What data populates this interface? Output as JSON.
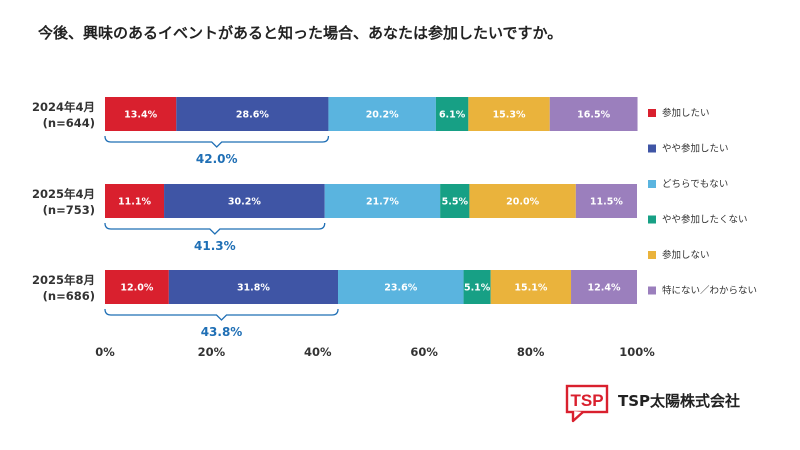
{
  "chart_data": {
    "type": "bar",
    "orientation": "horizontal",
    "stacked": true,
    "title": "今後、興味のあるイベントがあると知った場合、あなたは参加したいですか。",
    "xlim": [
      0,
      100
    ],
    "x_ticks": [
      "0%",
      "20%",
      "40%",
      "60%",
      "80%",
      "100%"
    ],
    "grid": false,
    "legend_position": "right",
    "categories": [
      {
        "label_line1": "2024年4月",
        "label_line2": "(n=644)"
      },
      {
        "label_line1": "2025年4月",
        "label_line2": "(n=753)"
      },
      {
        "label_line1": "2025年8月",
        "label_line2": "(n=686)"
      }
    ],
    "series": [
      {
        "name": "参加したい",
        "color": "#d9202e",
        "values": [
          13.4,
          11.1,
          12.0
        ],
        "labels": [
          "13.4%",
          "11.1%",
          "12.0%"
        ],
        "text_color": "#ffffff"
      },
      {
        "name": "やや参加したい",
        "color": "#3f55a5",
        "values": [
          28.6,
          30.2,
          31.8
        ],
        "labels": [
          "28.6%",
          "30.2%",
          "31.8%"
        ],
        "text_color": "#ffffff"
      },
      {
        "name": "どちらでもない",
        "color": "#5ab4df",
        "values": [
          20.2,
          21.7,
          23.6
        ],
        "labels": [
          "20.2%",
          "21.7%",
          "23.6%"
        ],
        "text_color": "#ffffff"
      },
      {
        "name": "やや参加したくない",
        "color": "#17a085",
        "values": [
          6.1,
          5.5,
          5.1
        ],
        "labels": [
          "6.1%",
          "5.5%",
          "5.1%"
        ],
        "text_color": "#ffffff"
      },
      {
        "name": "参加しない",
        "color": "#eab33c",
        "values": [
          15.3,
          20.0,
          15.1
        ],
        "labels": [
          "15.3%",
          "20.0%",
          "15.1%"
        ],
        "text_color": "#ffffff"
      },
      {
        "name": "特にない／わからない",
        "color": "#9b7fbd",
        "values": [
          16.5,
          11.5,
          12.4
        ],
        "labels": [
          "16.5%",
          "11.5%",
          "12.4%"
        ],
        "text_color": "#ffffff"
      }
    ],
    "annotations": [
      {
        "label": "42.0%",
        "value": 42.0,
        "span": [
          0,
          42.0
        ]
      },
      {
        "label": "41.3%",
        "value": 41.3,
        "span": [
          0,
          41.3
        ]
      },
      {
        "label": "43.8%",
        "value": 43.8,
        "span": [
          0,
          43.8
        ]
      }
    ]
  },
  "brand": {
    "logo_text": "TSP",
    "company_name": "TSP太陽株式会社",
    "color": "#d9202e"
  }
}
